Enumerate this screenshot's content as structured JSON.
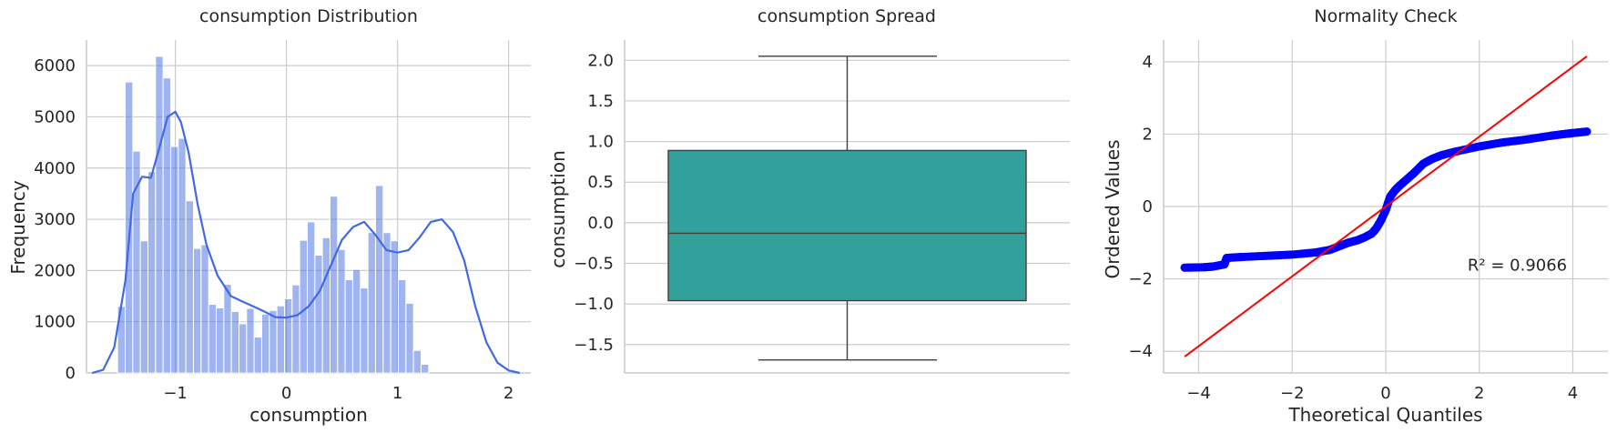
{
  "chart_data": [
    {
      "type": "bar",
      "title": "consumption Distribution",
      "xlabel": "consumption",
      "ylabel": "Frequency",
      "xlim": [
        -1.8,
        2.2
      ],
      "ylim": [
        0,
        6500
      ],
      "xticks": [
        -1,
        0,
        1,
        2
      ],
      "yticks": [
        0,
        1000,
        2000,
        3000,
        4000,
        5000,
        6000
      ],
      "x_tick_labels": [
        "−1",
        "0",
        "1",
        "2"
      ],
      "y_tick_labels": [
        "0",
        "1000",
        "2000",
        "3000",
        "4000",
        "5000",
        "6000"
      ],
      "grid": true,
      "bar_color": "#4169e1",
      "kde_color": "#4169e1",
      "bin_start": -1.52,
      "bin_width": 0.0683,
      "values": [
        1300,
        5680,
        4330,
        2580,
        3930,
        6180,
        5760,
        4420,
        4580,
        3360,
        2430,
        2500,
        1340,
        1270,
        1730,
        1200,
        960,
        1260,
        700,
        1150,
        1220,
        1310,
        1450,
        1720,
        2590,
        2950,
        2300,
        2640,
        3450,
        2410,
        1820,
        2020,
        1660,
        2740,
        3660,
        2740,
        2580,
        1820,
        1360,
        440,
        170
      ],
      "kde_x": [
        -1.75,
        -1.65,
        -1.55,
        -1.45,
        -1.38,
        -1.3,
        -1.22,
        -1.15,
        -1.07,
        -1.0,
        -0.95,
        -0.88,
        -0.8,
        -0.72,
        -0.62,
        -0.5,
        -0.4,
        -0.3,
        -0.2,
        -0.1,
        0.0,
        0.1,
        0.2,
        0.3,
        0.4,
        0.5,
        0.6,
        0.7,
        0.8,
        0.9,
        1.0,
        1.1,
        1.2,
        1.3,
        1.4,
        1.5,
        1.6,
        1.7,
        1.8,
        1.9,
        2.0,
        2.1
      ],
      "kde_y": [
        0,
        60,
        500,
        1800,
        3500,
        3830,
        3810,
        4350,
        5000,
        5100,
        4900,
        4300,
        3300,
        2500,
        1900,
        1500,
        1400,
        1300,
        1200,
        1090,
        1080,
        1130,
        1300,
        1600,
        2100,
        2600,
        2850,
        2950,
        2700,
        2400,
        2350,
        2400,
        2650,
        2950,
        3000,
        2750,
        2200,
        1300,
        600,
        200,
        50,
        0
      ]
    },
    {
      "type": "box",
      "title": "consumption Spread",
      "ylabel": "consumption",
      "ylim": [
        -1.85,
        2.25
      ],
      "yticks": [
        -1.5,
        -1.0,
        -0.5,
        0.0,
        0.5,
        1.0,
        1.5,
        2.0
      ],
      "y_tick_labels": [
        "−1.5",
        "−1.0",
        "−0.5",
        "0.0",
        "0.5",
        "1.0",
        "1.5",
        "2.0"
      ],
      "grid": true,
      "box_color": "#33a19b",
      "stats": {
        "whisker_low": -1.69,
        "q1": -0.96,
        "median": -0.13,
        "q3": 0.89,
        "whisker_high": 2.05
      }
    },
    {
      "type": "scatter",
      "title": "Normality Check",
      "xlabel": "Theoretical Quantiles",
      "ylabel": "Ordered Values",
      "xlim": [
        -4.75,
        4.75
      ],
      "ylim": [
        -4.6,
        4.6
      ],
      "xticks": [
        -4,
        -2,
        0,
        2,
        4
      ],
      "yticks": [
        -4,
        -2,
        0,
        2,
        4
      ],
      "x_tick_labels": [
        "−4",
        "−2",
        "0",
        "2",
        "4"
      ],
      "y_tick_labels": [
        "−4",
        "−2",
        "0",
        "2",
        "4"
      ],
      "grid": true,
      "point_color": "#0000ff",
      "line_color": "#ff0000",
      "fit_line": {
        "x": [
          -4.3,
          4.3
        ],
        "y": [
          -4.15,
          4.15
        ]
      },
      "points": {
        "x": [
          -4.3,
          -3.9,
          -3.7,
          -3.45,
          -3.4,
          -3.0,
          -2.5,
          -2.0,
          -1.5,
          -1.2,
          -1.0,
          -0.8,
          -0.6,
          -0.45,
          -0.3,
          -0.2,
          -0.1,
          0.0,
          0.05,
          0.1,
          0.2,
          0.3,
          0.45,
          0.6,
          0.8,
          1.0,
          1.2,
          1.5,
          2.0,
          2.5,
          3.0,
          3.5,
          3.8,
          4.0,
          4.3
        ],
        "y": [
          -1.69,
          -1.68,
          -1.66,
          -1.6,
          -1.42,
          -1.39,
          -1.36,
          -1.33,
          -1.27,
          -1.2,
          -1.1,
          -1.0,
          -0.93,
          -0.85,
          -0.75,
          -0.6,
          -0.38,
          -0.1,
          0.1,
          0.28,
          0.45,
          0.58,
          0.75,
          0.92,
          1.18,
          1.32,
          1.42,
          1.52,
          1.66,
          1.77,
          1.85,
          1.95,
          2.0,
          2.03,
          2.07
        ]
      },
      "annotation": "R² = 0.9066",
      "annotation_pos": [
        1.75,
        -1.6
      ]
    }
  ]
}
